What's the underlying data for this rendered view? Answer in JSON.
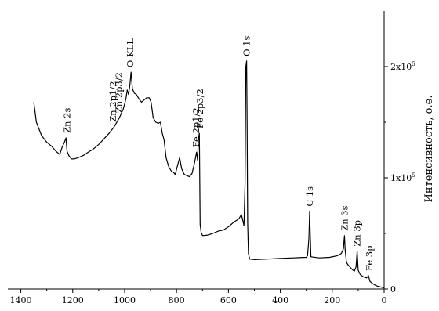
{
  "chart_data": {
    "type": "line",
    "title": "",
    "xlabel": "",
    "ylabel": "Интенсивность, о.е.",
    "x_reversed": true,
    "xlim": [
      0,
      1450
    ],
    "ylim": [
      0,
      250000
    ],
    "grid": false,
    "legend": "none",
    "x_ticks": [
      {
        "value": 1400,
        "label": "1400"
      },
      {
        "value": 1200,
        "label": "1200"
      },
      {
        "value": 1000,
        "label": "1000"
      },
      {
        "value": 800,
        "label": "800"
      },
      {
        "value": 600,
        "label": "600"
      },
      {
        "value": 400,
        "label": "400"
      },
      {
        "value": 200,
        "label": "200"
      },
      {
        "value": 0,
        "label": "0"
      }
    ],
    "y_ticks": [
      {
        "value": 0,
        "base": "0",
        "exp": ""
      },
      {
        "value": 100000,
        "base": "1x10",
        "exp": "5"
      },
      {
        "value": 200000,
        "base": "2x10",
        "exp": "5"
      }
    ],
    "series": [
      {
        "color": "#000000",
        "points": [
          [
            1350,
            168000
          ],
          [
            1340,
            150000
          ],
          [
            1320,
            138000
          ],
          [
            1300,
            132000
          ],
          [
            1280,
            128000
          ],
          [
            1265,
            124000
          ],
          [
            1250,
            121000
          ],
          [
            1240,
            128000
          ],
          [
            1232,
            132000
          ],
          [
            1226,
            136000
          ],
          [
            1222,
            124000
          ],
          [
            1215,
            120000
          ],
          [
            1205,
            117000
          ],
          [
            1195,
            117000
          ],
          [
            1180,
            118000
          ],
          [
            1160,
            120000
          ],
          [
            1140,
            123000
          ],
          [
            1120,
            126000
          ],
          [
            1100,
            130000
          ],
          [
            1080,
            135000
          ],
          [
            1060,
            140000
          ],
          [
            1040,
            146000
          ],
          [
            1020,
            154000
          ],
          [
            1005,
            162000
          ],
          [
            995,
            171000
          ],
          [
            990,
            179000
          ],
          [
            985,
            175000
          ],
          [
            980,
            183000
          ],
          [
            975,
            195000
          ],
          [
            970,
            180000
          ],
          [
            962,
            176000
          ],
          [
            955,
            175000
          ],
          [
            945,
            171000
          ],
          [
            935,
            168000
          ],
          [
            925,
            170000
          ],
          [
            915,
            172000
          ],
          [
            905,
            172000
          ],
          [
            898,
            168000
          ],
          [
            890,
            154000
          ],
          [
            880,
            150000
          ],
          [
            870,
            149000
          ],
          [
            862,
            150000
          ],
          [
            855,
            140000
          ],
          [
            848,
            134000
          ],
          [
            840,
            118000
          ],
          [
            830,
            110000
          ],
          [
            820,
            106000
          ],
          [
            812,
            105000
          ],
          [
            805,
            103000
          ],
          [
            795,
            112000
          ],
          [
            788,
            118000
          ],
          [
            780,
            108000
          ],
          [
            770,
            103000
          ],
          [
            760,
            102000
          ],
          [
            750,
            101000
          ],
          [
            740,
            104000
          ],
          [
            730,
            114000
          ],
          [
            723,
            123000
          ],
          [
            719,
            116000
          ],
          [
            716,
            135000
          ],
          [
            712,
            140000
          ],
          [
            709,
            58000
          ],
          [
            705,
            51000
          ],
          [
            700,
            48000
          ],
          [
            680,
            48500
          ],
          [
            660,
            50000
          ],
          [
            640,
            52000
          ],
          [
            620,
            53000
          ],
          [
            600,
            56000
          ],
          [
            580,
            60000
          ],
          [
            560,
            63000
          ],
          [
            550,
            67000
          ],
          [
            545,
            62000
          ],
          [
            540,
            57000
          ],
          [
            536,
            95000
          ],
          [
            533,
            200000
          ],
          [
            530,
            205000
          ],
          [
            528,
            150000
          ],
          [
            526,
            60000
          ],
          [
            523,
            32000
          ],
          [
            518,
            27000
          ],
          [
            500,
            26500
          ],
          [
            450,
            27000
          ],
          [
            400,
            27500
          ],
          [
            350,
            28000
          ],
          [
            300,
            28500
          ],
          [
            295,
            30000
          ],
          [
            290,
            45000
          ],
          [
            287,
            70000
          ],
          [
            285,
            50000
          ],
          [
            282,
            29000
          ],
          [
            250,
            28000
          ],
          [
            210,
            28500
          ],
          [
            180,
            30000
          ],
          [
            165,
            32000
          ],
          [
            157,
            36000
          ],
          [
            153,
            48000
          ],
          [
            150,
            35000
          ],
          [
            145,
            24000
          ],
          [
            140,
            22000
          ],
          [
            125,
            18000
          ],
          [
            115,
            16000
          ],
          [
            108,
            20000
          ],
          [
            104,
            34000
          ],
          [
            100,
            17000
          ],
          [
            92,
            13000
          ],
          [
            80,
            11000
          ],
          [
            68,
            10000
          ],
          [
            60,
            12000
          ],
          [
            55,
            7000
          ],
          [
            45,
            5000
          ],
          [
            35,
            3500
          ],
          [
            25,
            2500
          ],
          [
            15,
            2000
          ],
          [
            8,
            1500
          ],
          [
            0,
            1000
          ]
        ]
      }
    ],
    "annotations": [
      {
        "text": "Zn 2s",
        "x": 1222,
        "y": 136000
      },
      {
        "text": "Zn 2p1/2",
        "x": 1045,
        "y": 146000
      },
      {
        "text": "Zn 2p3/2",
        "x": 1022,
        "y": 154000
      },
      {
        "text": "O KLL",
        "x": 978,
        "y": 195000
      },
      {
        "text": "Fe 2p1/2",
        "x": 725,
        "y": 123000
      },
      {
        "text": "Fe 2p3/2",
        "x": 710,
        "y": 140000
      },
      {
        "text": "O 1s",
        "x": 530,
        "y": 205000
      },
      {
        "text": "C 1s",
        "x": 287,
        "y": 70000
      },
      {
        "text": "Zn 3s",
        "x": 153,
        "y": 48000
      },
      {
        "text": "Zn 3p",
        "x": 104,
        "y": 34000
      },
      {
        "text": "Fe 3p",
        "x": 57,
        "y": 12000
      }
    ]
  }
}
